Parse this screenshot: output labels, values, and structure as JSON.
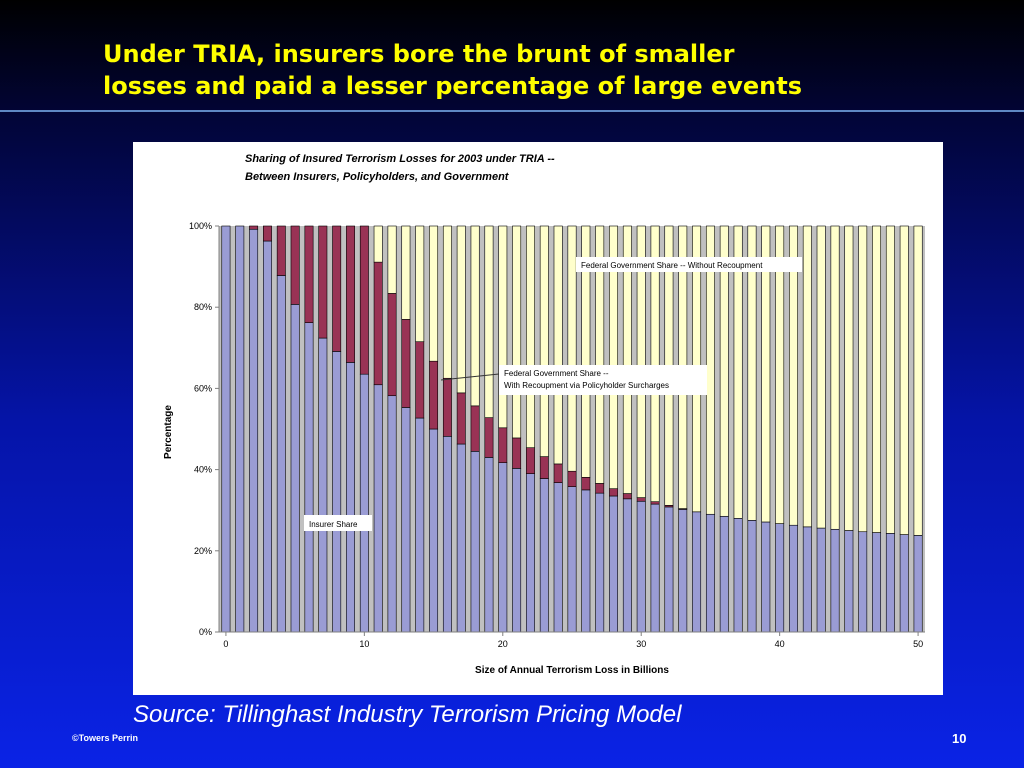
{
  "slide": {
    "title_line1": "Under TRIA, insurers bore the brunt of smaller",
    "title_line2": "losses and paid a lesser percentage of large events",
    "source": "Source: Tillinghast Industry Terrorism Pricing Model",
    "copyright": "©Towers Perrin",
    "page_number": "10"
  },
  "chart_data": {
    "type": "bar",
    "stacked": true,
    "title_line1": "Sharing of Insured Terrorism Losses for 2003 under TRIA --",
    "title_line2": "Between Insurers, Policyholders, and Government",
    "xlabel": "Size of Annual Terrorism Loss in Billions",
    "ylabel": "Percentage",
    "xlim": [
      0,
      50
    ],
    "ylim": [
      0,
      100
    ],
    "x_ticks": [
      "0",
      "10",
      "20",
      "30",
      "40",
      "50"
    ],
    "y_ticks": [
      "0%",
      "20%",
      "40%",
      "60%",
      "80%",
      "100%"
    ],
    "x": [
      0,
      1,
      2,
      3,
      4,
      5,
      6,
      7,
      8,
      9,
      10,
      11,
      12,
      13,
      14,
      15,
      16,
      17,
      18,
      19,
      20,
      21,
      22,
      23,
      24,
      25,
      26,
      27,
      28,
      29,
      30,
      31,
      32,
      33,
      34,
      35,
      36,
      37,
      38,
      39,
      40,
      41,
      42,
      43,
      44,
      45,
      46,
      47,
      48,
      49,
      50
    ],
    "series": [
      {
        "name": "Insurer Share",
        "color": "#9a9cd4",
        "values": [
          100,
          100,
          99.2,
          96.3,
          87.8,
          80.7,
          76.2,
          72.4,
          69.1,
          66.4,
          63.5,
          60.9,
          58.2,
          55.3,
          52.7,
          50.0,
          48.2,
          46.3,
          44.5,
          43.0,
          41.7,
          40.3,
          39.0,
          37.8,
          36.8,
          35.8,
          35.0,
          34.2,
          33.5,
          32.8,
          32.2,
          31.5,
          30.8,
          30.2,
          29.6,
          29.0,
          28.5,
          28.0,
          27.5,
          27.1,
          26.7,
          26.3,
          25.9,
          25.6,
          25.3,
          25.0,
          24.7,
          24.5,
          24.3,
          24.0,
          23.8
        ]
      },
      {
        "name": "Federal Government Share -- With Recoupment via Policyholder Surcharges",
        "color": "#993355",
        "values": [
          0,
          0,
          0.8,
          3.7,
          12.2,
          19.3,
          23.8,
          27.6,
          30.9,
          33.6,
          36.5,
          30.2,
          25.2,
          21.7,
          18.8,
          16.7,
          14.3,
          12.6,
          11.2,
          9.8,
          8.6,
          7.5,
          6.4,
          5.4,
          4.6,
          3.8,
          3.1,
          2.4,
          1.8,
          1.3,
          0.9,
          0.6,
          0.4,
          0.2,
          0,
          0,
          0,
          0,
          0,
          0,
          0,
          0,
          0,
          0,
          0,
          0,
          0,
          0,
          0,
          0,
          0
        ]
      },
      {
        "name": "Federal Government Share -- Without Recoupment",
        "color": "#ffffcc",
        "values": [
          0,
          0,
          0,
          0,
          0,
          0,
          0,
          0,
          0,
          0,
          0,
          8.9,
          16.6,
          23.0,
          28.5,
          33.3,
          37.5,
          41.1,
          44.3,
          47.2,
          49.7,
          52.2,
          54.6,
          56.8,
          58.6,
          60.4,
          61.9,
          63.4,
          64.7,
          65.9,
          66.9,
          67.9,
          68.8,
          69.6,
          70.4,
          71.0,
          71.5,
          72.0,
          72.5,
          72.9,
          73.3,
          73.7,
          74.1,
          74.4,
          74.7,
          75.0,
          75.3,
          75.5,
          75.7,
          76.0,
          76.2
        ]
      }
    ],
    "annotations": [
      {
        "label": "Federal Government Share -- Without Recoupment"
      },
      {
        "label_line1": "Federal Government Share --",
        "label_line2": "With Recoupment via Policyholder Surcharges"
      },
      {
        "label": "Insurer Share"
      }
    ],
    "grid": false,
    "plot_background": "#c0c0c0"
  }
}
